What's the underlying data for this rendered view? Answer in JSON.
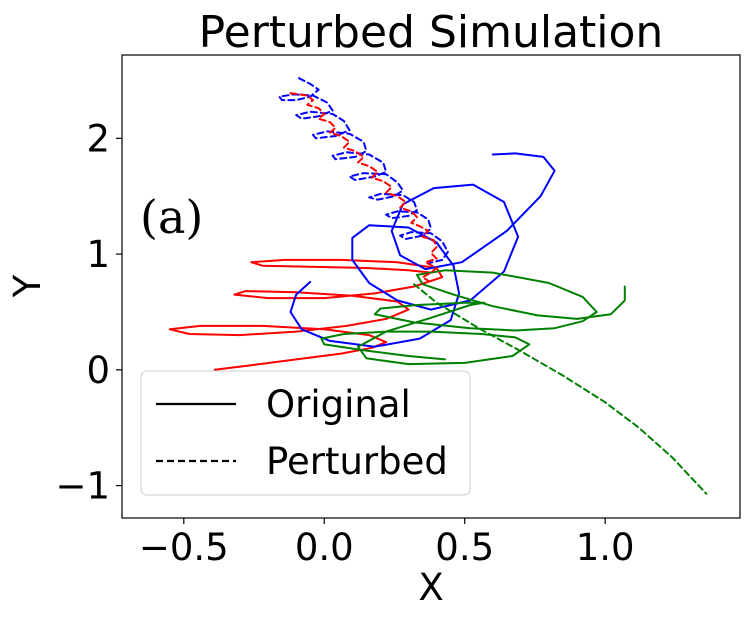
{
  "chart_data": {
    "type": "line",
    "title": "Perturbed Simulation",
    "xlabel": "X",
    "ylabel": "Y",
    "panel_label": "(a)",
    "xlim": [
      -0.72,
      1.48
    ],
    "ylim": [
      -1.28,
      2.72
    ],
    "xticks": [
      -0.5,
      0.0,
      0.5,
      1.0
    ],
    "xtick_labels": [
      "−0.5",
      "0.0",
      "0.5",
      "1.0"
    ],
    "yticks": [
      -1,
      0,
      1,
      2
    ],
    "ytick_labels": [
      "−1",
      "0",
      "1",
      "2"
    ],
    "grid": false,
    "legend": {
      "placement": "lower-left",
      "entries": [
        {
          "label": "Original",
          "style": "solid"
        },
        {
          "label": "Perturbed",
          "style": "dashed"
        }
      ]
    },
    "series": [
      {
        "color": "#ff0000",
        "style": "solid",
        "points": [
          [
            -0.39,
            0.0
          ],
          [
            -0.26,
            0.04
          ],
          [
            -0.1,
            0.09
          ],
          [
            0.06,
            0.14
          ],
          [
            0.17,
            0.19
          ],
          [
            0.22,
            0.24
          ],
          [
            0.16,
            0.3
          ],
          [
            0.0,
            0.35
          ],
          [
            -0.22,
            0.38
          ],
          [
            -0.44,
            0.38
          ],
          [
            -0.55,
            0.35
          ],
          [
            -0.48,
            0.31
          ],
          [
            -0.3,
            0.3
          ],
          [
            -0.1,
            0.33
          ],
          [
            0.08,
            0.38
          ],
          [
            0.22,
            0.44
          ],
          [
            0.3,
            0.52
          ],
          [
            0.26,
            0.59
          ],
          [
            0.1,
            0.64
          ],
          [
            -0.1,
            0.67
          ],
          [
            -0.28,
            0.68
          ],
          [
            -0.32,
            0.65
          ],
          [
            -0.2,
            0.62
          ],
          [
            0.0,
            0.62
          ],
          [
            0.18,
            0.66
          ],
          [
            0.32,
            0.72
          ],
          [
            0.42,
            0.8
          ],
          [
            0.4,
            0.88
          ],
          [
            0.26,
            0.93
          ],
          [
            0.06,
            0.95
          ],
          [
            -0.14,
            0.95
          ],
          [
            -0.26,
            0.93
          ],
          [
            -0.22,
            0.9
          ],
          [
            -0.05,
            0.89
          ],
          [
            0.15,
            0.88
          ],
          [
            0.3,
            0.86
          ],
          [
            0.38,
            0.84
          ]
        ]
      },
      {
        "color": "#0000ff",
        "style": "solid",
        "points": [
          [
            -0.05,
            0.76
          ],
          [
            -0.1,
            0.65
          ],
          [
            -0.12,
            0.5
          ],
          [
            -0.08,
            0.35
          ],
          [
            0.02,
            0.25
          ],
          [
            0.18,
            0.2
          ],
          [
            0.34,
            0.27
          ],
          [
            0.45,
            0.43
          ],
          [
            0.48,
            0.66
          ],
          [
            0.46,
            0.9
          ],
          [
            0.4,
            1.1
          ],
          [
            0.3,
            1.23
          ],
          [
            0.16,
            1.25
          ],
          [
            0.1,
            1.14
          ],
          [
            0.1,
            0.95
          ],
          [
            0.16,
            0.75
          ],
          [
            0.26,
            0.6
          ],
          [
            0.38,
            0.52
          ],
          [
            0.52,
            0.6
          ],
          [
            0.64,
            0.85
          ],
          [
            0.69,
            1.15
          ],
          [
            0.64,
            1.45
          ],
          [
            0.53,
            1.6
          ],
          [
            0.39,
            1.57
          ],
          [
            0.28,
            1.43
          ],
          [
            0.24,
            1.2
          ],
          [
            0.27,
            0.99
          ],
          [
            0.36,
            0.87
          ],
          [
            0.49,
            0.93
          ],
          [
            0.65,
            1.2
          ],
          [
            0.77,
            1.5
          ],
          [
            0.82,
            1.72
          ],
          [
            0.78,
            1.84
          ],
          [
            0.68,
            1.87
          ],
          [
            0.6,
            1.86
          ]
        ]
      },
      {
        "color": "#008000",
        "style": "solid",
        "points": [
          [
            0.43,
            0.09
          ],
          [
            0.3,
            0.12
          ],
          [
            0.14,
            0.17
          ],
          [
            0.0,
            0.22
          ],
          [
            -0.01,
            0.27
          ],
          [
            0.07,
            0.31
          ],
          [
            0.22,
            0.33
          ],
          [
            0.38,
            0.33
          ],
          [
            0.56,
            0.31
          ],
          [
            0.68,
            0.28
          ],
          [
            0.73,
            0.22
          ],
          [
            0.67,
            0.12
          ],
          [
            0.5,
            0.06
          ],
          [
            0.3,
            0.05
          ],
          [
            0.15,
            0.1
          ],
          [
            0.12,
            0.2
          ],
          [
            0.22,
            0.33
          ],
          [
            0.38,
            0.45
          ],
          [
            0.52,
            0.56
          ],
          [
            0.57,
            0.58
          ],
          [
            0.5,
            0.58
          ],
          [
            0.33,
            0.56
          ],
          [
            0.2,
            0.53
          ],
          [
            0.18,
            0.48
          ],
          [
            0.32,
            0.41
          ],
          [
            0.52,
            0.36
          ],
          [
            0.68,
            0.34
          ],
          [
            0.82,
            0.36
          ],
          [
            0.92,
            0.42
          ],
          [
            0.97,
            0.5
          ],
          [
            0.92,
            0.63
          ],
          [
            0.8,
            0.75
          ],
          [
            0.6,
            0.84
          ],
          [
            0.43,
            0.86
          ],
          [
            0.33,
            0.82
          ],
          [
            0.35,
            0.74
          ],
          [
            0.46,
            0.65
          ],
          [
            0.6,
            0.55
          ],
          [
            0.76,
            0.47
          ],
          [
            0.9,
            0.44
          ],
          [
            1.02,
            0.48
          ],
          [
            1.07,
            0.6
          ],
          [
            1.07,
            0.72
          ]
        ]
      },
      {
        "color": "#0000ff",
        "style": "dashed",
        "points": [
          [
            -0.09,
            2.52
          ],
          [
            -0.05,
            2.47
          ],
          [
            -0.02,
            2.42
          ],
          [
            -0.05,
            2.36
          ],
          [
            -0.1,
            2.33
          ],
          [
            -0.15,
            2.33
          ],
          [
            -0.16,
            2.36
          ],
          [
            -0.11,
            2.38
          ],
          [
            -0.04,
            2.37
          ],
          [
            0.01,
            2.31
          ],
          [
            0.03,
            2.24
          ],
          [
            -0.02,
            2.19
          ],
          [
            -0.08,
            2.17
          ],
          [
            -0.1,
            2.2
          ],
          [
            -0.05,
            2.23
          ],
          [
            0.03,
            2.21
          ],
          [
            0.07,
            2.15
          ],
          [
            0.09,
            2.07
          ],
          [
            0.04,
            2.02
          ],
          [
            -0.03,
            2.0
          ],
          [
            -0.04,
            2.03
          ],
          [
            0.01,
            2.06
          ],
          [
            0.09,
            2.04
          ],
          [
            0.14,
            1.97
          ],
          [
            0.15,
            1.89
          ],
          [
            0.11,
            1.84
          ],
          [
            0.04,
            1.82
          ],
          [
            0.03,
            1.85
          ],
          [
            0.08,
            1.88
          ],
          [
            0.16,
            1.86
          ],
          [
            0.21,
            1.79
          ],
          [
            0.22,
            1.71
          ],
          [
            0.18,
            1.67
          ],
          [
            0.11,
            1.64
          ],
          [
            0.09,
            1.67
          ],
          [
            0.14,
            1.7
          ],
          [
            0.22,
            1.69
          ],
          [
            0.26,
            1.62
          ],
          [
            0.28,
            1.55
          ],
          [
            0.25,
            1.5
          ],
          [
            0.19,
            1.47
          ],
          [
            0.16,
            1.49
          ],
          [
            0.2,
            1.52
          ],
          [
            0.28,
            1.51
          ],
          [
            0.32,
            1.45
          ],
          [
            0.33,
            1.38
          ],
          [
            0.3,
            1.33
          ],
          [
            0.24,
            1.31
          ],
          [
            0.22,
            1.34
          ],
          [
            0.26,
            1.37
          ],
          [
            0.33,
            1.36
          ],
          [
            0.37,
            1.3
          ],
          [
            0.38,
            1.22
          ],
          [
            0.35,
            1.16
          ],
          [
            0.29,
            1.13
          ],
          [
            0.27,
            1.16
          ],
          [
            0.31,
            1.19
          ],
          [
            0.38,
            1.18
          ],
          [
            0.42,
            1.11
          ],
          [
            0.44,
            1.02
          ],
          [
            0.42,
            0.95
          ],
          [
            0.37,
            0.92
          ]
        ]
      },
      {
        "color": "#ff0000",
        "style": "dashed",
        "points": [
          [
            -0.12,
            2.39
          ],
          [
            -0.06,
            2.37
          ],
          [
            -0.04,
            2.33
          ],
          [
            -0.06,
            2.29
          ],
          [
            -0.02,
            2.26
          ],
          [
            0.0,
            2.21
          ],
          [
            -0.02,
            2.17
          ],
          [
            0.02,
            2.14
          ],
          [
            0.04,
            2.09
          ],
          [
            0.02,
            2.05
          ],
          [
            0.06,
            2.02
          ],
          [
            0.09,
            1.97
          ],
          [
            0.07,
            1.92
          ],
          [
            0.11,
            1.89
          ],
          [
            0.14,
            1.84
          ],
          [
            0.12,
            1.79
          ],
          [
            0.16,
            1.76
          ],
          [
            0.19,
            1.71
          ],
          [
            0.17,
            1.66
          ],
          [
            0.21,
            1.63
          ],
          [
            0.24,
            1.58
          ],
          [
            0.22,
            1.53
          ],
          [
            0.26,
            1.5
          ],
          [
            0.29,
            1.45
          ],
          [
            0.27,
            1.4
          ],
          [
            0.31,
            1.37
          ],
          [
            0.33,
            1.32
          ],
          [
            0.31,
            1.27
          ],
          [
            0.34,
            1.24
          ],
          [
            0.37,
            1.2
          ],
          [
            0.35,
            1.15
          ],
          [
            0.39,
            1.12
          ],
          [
            0.4,
            1.06
          ],
          [
            0.38,
            1.01
          ],
          [
            0.4,
            0.96
          ],
          [
            0.36,
            0.93
          ],
          [
            0.4,
            0.88
          ],
          [
            0.38,
            0.84
          ],
          [
            0.35,
            0.8
          ],
          [
            0.37,
            0.77
          ]
        ]
      },
      {
        "color": "#008000",
        "style": "dashed",
        "points": [
          [
            0.32,
            0.74
          ],
          [
            0.4,
            0.58
          ],
          [
            0.55,
            0.36
          ],
          [
            0.7,
            0.16
          ],
          [
            0.85,
            -0.05
          ],
          [
            1.0,
            -0.28
          ],
          [
            1.12,
            -0.5
          ],
          [
            1.24,
            -0.76
          ],
          [
            1.36,
            -1.07
          ]
        ]
      }
    ]
  }
}
